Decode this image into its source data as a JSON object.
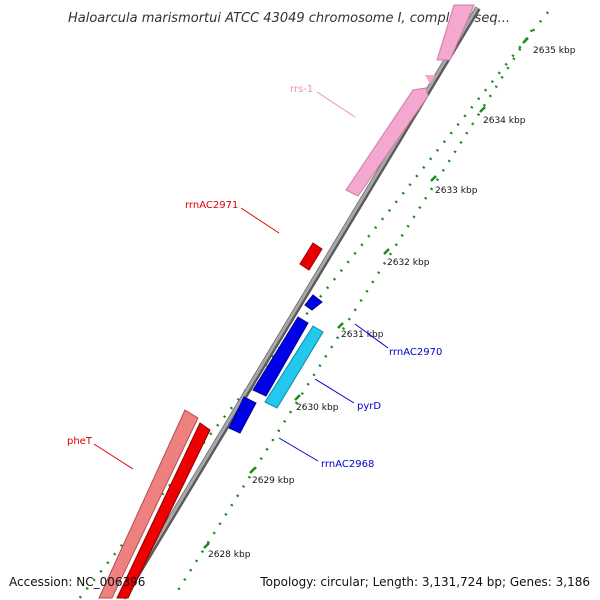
{
  "title": "Haloarcula marismortui ATCC 43049 chromosome I, complete seq...",
  "accession": "Accession: NC_006396",
  "summary": "Topology: circular; Length: 3,131,724 bp; Genes: 3,186",
  "scale": {
    "ticks": [
      {
        "label": "2628 kbp"
      },
      {
        "label": "2629 kbp"
      },
      {
        "label": "2630 kbp"
      },
      {
        "label": "2631 kbp"
      },
      {
        "label": "2632 kbp"
      },
      {
        "label": "2633 kbp"
      },
      {
        "label": "2634 kbp"
      },
      {
        "label": "2635 kbp"
      }
    ]
  },
  "features": [
    {
      "name": "rrs-1",
      "color": "#f29ec8"
    },
    {
      "name": "rrnAC2971",
      "color": "#ff0000"
    },
    {
      "name": "rrnAC2970",
      "color": "#0000e0"
    },
    {
      "name": "pyrD",
      "color": "#22ccee"
    },
    {
      "name": "rrnAC2968",
      "color": "#0000e0"
    },
    {
      "name": "pheT",
      "color": "#ff0000"
    }
  ],
  "colors": {
    "backbone": "#8a8a8a",
    "tick": "#1a8a1a",
    "label_pink": "#f08ac0",
    "label_red": "#e00000",
    "label_blue": "#0000cc"
  }
}
